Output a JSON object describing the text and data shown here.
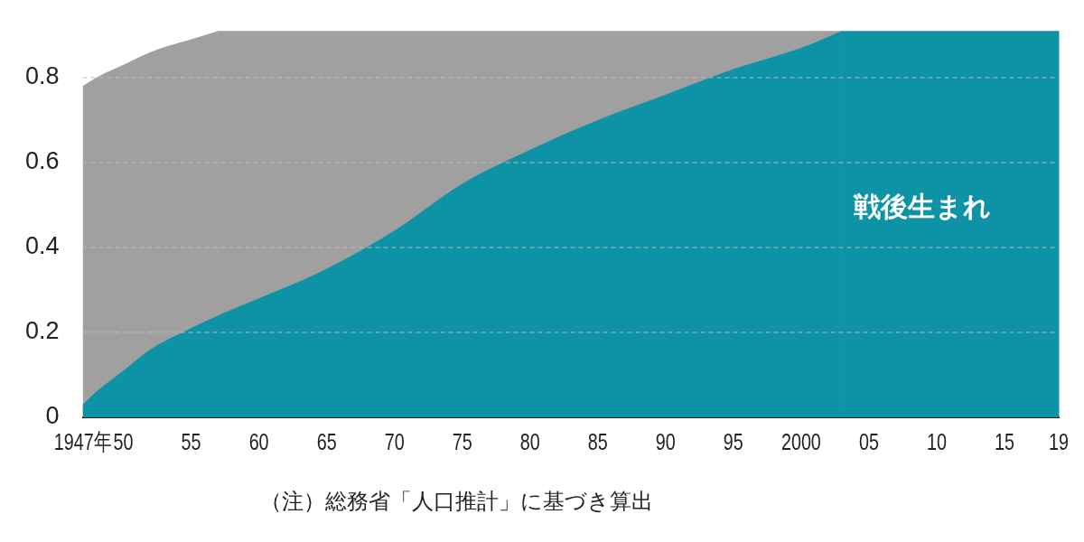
{
  "chart_data": {
    "type": "area",
    "x": [
      1947,
      1948,
      1950,
      1952,
      1955,
      1957,
      1960,
      1965,
      1970,
      1975,
      1980,
      1985,
      1990,
      1995,
      2000,
      2003
    ],
    "series": [
      {
        "name": "戦後生まれ",
        "color": "#0e93a6",
        "values": [
          0.03,
          0.06,
          0.11,
          0.16,
          0.21,
          0.24,
          0.28,
          0.35,
          0.44,
          0.55,
          0.63,
          0.7,
          0.76,
          0.82,
          0.87,
          0.91
        ]
      },
      {
        "color": "#a0a0a0",
        "values": [
          0.78,
          0.8,
          0.83,
          0.86,
          0.89,
          0.91,
          null,
          null,
          null,
          null,
          null,
          null,
          null,
          null,
          null,
          null
        ]
      }
    ],
    "bands": [
      {
        "axis": "x",
        "from": 1957,
        "to": 2003,
        "color": "#a0a0a0"
      },
      {
        "axis": "x",
        "from": 2003,
        "to": 2019,
        "color": "#0e93a6"
      }
    ],
    "xlim": [
      1947,
      2019
    ],
    "xticks": [
      {
        "value": 1947,
        "label": "1947年"
      },
      {
        "value": 1950,
        "label": "50"
      },
      {
        "value": 1955,
        "label": "55"
      },
      {
        "value": 1960,
        "label": "60"
      },
      {
        "value": 1965,
        "label": "65"
      },
      {
        "value": 1970,
        "label": "70"
      },
      {
        "value": 1975,
        "label": "75"
      },
      {
        "value": 1980,
        "label": "80"
      },
      {
        "value": 1985,
        "label": "85"
      },
      {
        "value": 1990,
        "label": "90"
      },
      {
        "value": 1995,
        "label": "95"
      },
      {
        "value": 2000,
        "label": "2000"
      },
      {
        "value": 2005,
        "label": "05"
      },
      {
        "value": 2010,
        "label": "10"
      },
      {
        "value": 2015,
        "label": "15"
      },
      {
        "value": 2019,
        "label": "19"
      }
    ],
    "ylim": [
      0,
      0.91
    ],
    "yticks": [
      {
        "value": 0,
        "label": "0"
      },
      0.2,
      0.4,
      0.6,
      0.8
    ],
    "grid": "y",
    "legend": false,
    "annotations": [
      "（注）総務省「人口推計」に基づき算出"
    ]
  }
}
